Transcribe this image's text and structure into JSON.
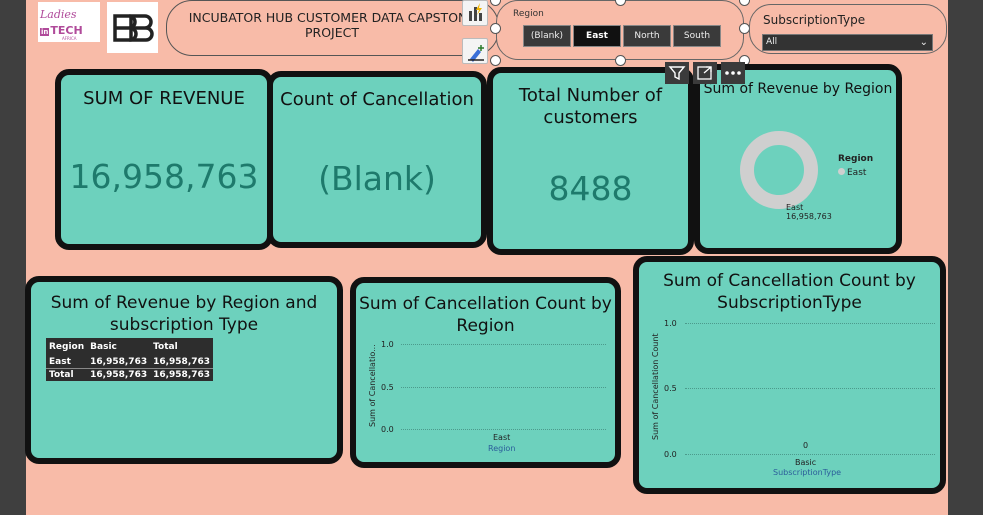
{
  "header": {
    "logo1_line1": "Ladies",
    "logo1_line2a": "in",
    "logo1_line2b": "TECH",
    "logo1_line3": "AFRICA",
    "title": "INCUBATOR HUB CUSTOMER DATA CAPSTONE PROJECT"
  },
  "region_slicer": {
    "label": "Region",
    "options": [
      "(Blank)",
      "East",
      "North",
      "South"
    ],
    "selected": "East"
  },
  "subscription_slicer": {
    "label": "SubscriptionType",
    "value": "All"
  },
  "kpis": {
    "revenue_title": "SUM OF REVENUE",
    "revenue_value": "16,958,763",
    "cancel_title": "Count of Cancellation",
    "cancel_value": "(Blank)",
    "customers_title": "Total Number of customers",
    "customers_value": "8488"
  },
  "donut": {
    "title": "Sum of Revenue by Region",
    "legend_title": "Region",
    "legend_item": "East",
    "label_name": "East",
    "label_value": "16,958,763",
    "colors": {
      "ring": "#cfcfcf"
    }
  },
  "matrix": {
    "title": "Sum of Revenue by Region and subscription Type",
    "headers": [
      "Region",
      "Basic",
      "Total"
    ],
    "rows": [
      [
        "East",
        "16,958,763",
        "16,958,763"
      ]
    ],
    "total": [
      "Total",
      "16,958,763",
      "16,958,763"
    ]
  },
  "cancel_region": {
    "title": "Sum of Cancellation Count by Region",
    "ylabel": "Sum of Cancellatio...",
    "yticks": [
      "1.0",
      "0.5",
      "0.0"
    ],
    "xtick": "East",
    "xlabel": "Region"
  },
  "cancel_sub": {
    "title": "Sum of Cancellation Count by SubscriptionType",
    "ylabel": "Sum of Cancellation Count",
    "yticks": [
      "1.0",
      "0.5",
      "0.0"
    ],
    "data_label": "0",
    "xtick": "Basic",
    "xlabel": "SubscriptionType"
  },
  "chart_data": [
    {
      "type": "pie",
      "title": "Sum of Revenue by Region",
      "categories": [
        "East"
      ],
      "values": [
        16958763
      ]
    },
    {
      "type": "bar",
      "title": "Sum of Cancellation Count by Region",
      "categories": [
        "East"
      ],
      "values": [
        0
      ],
      "xlabel": "Region",
      "ylabel": "Sum of Cancellatio...",
      "ylim": [
        0,
        1
      ]
    },
    {
      "type": "bar",
      "title": "Sum of Cancellation Count by SubscriptionType",
      "categories": [
        "Basic"
      ],
      "values": [
        0
      ],
      "xlabel": "SubscriptionType",
      "ylabel": "Sum of Cancellation Count",
      "ylim": [
        0,
        1
      ]
    }
  ]
}
